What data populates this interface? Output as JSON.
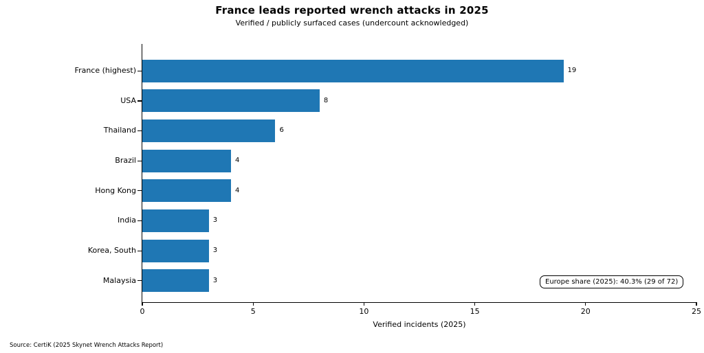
{
  "chart_data": {
    "type": "bar",
    "orientation": "horizontal",
    "title": "France leads reported wrench attacks in 2025",
    "subtitle": "Verified / publicly surfaced cases (undercount acknowledged)",
    "categories": [
      "France (highest)",
      "USA",
      "Thailand",
      "Brazil",
      "Hong Kong",
      "India",
      "Korea, South",
      "Malaysia"
    ],
    "values": [
      19,
      8,
      6,
      4,
      4,
      3,
      3,
      3
    ],
    "xlabel": "Verified incidents (2025)",
    "xlim": [
      0,
      25
    ],
    "xticks": [
      0,
      5,
      10,
      15,
      20,
      25
    ],
    "bar_color": "#1f77b4",
    "grid": false,
    "legend": null
  },
  "annotation": {
    "text": "Europe share (2025): 40.3% (29 of 72)"
  },
  "source": {
    "text": "Source: CertiK (2025 Skynet Wrench Attacks Report)"
  }
}
